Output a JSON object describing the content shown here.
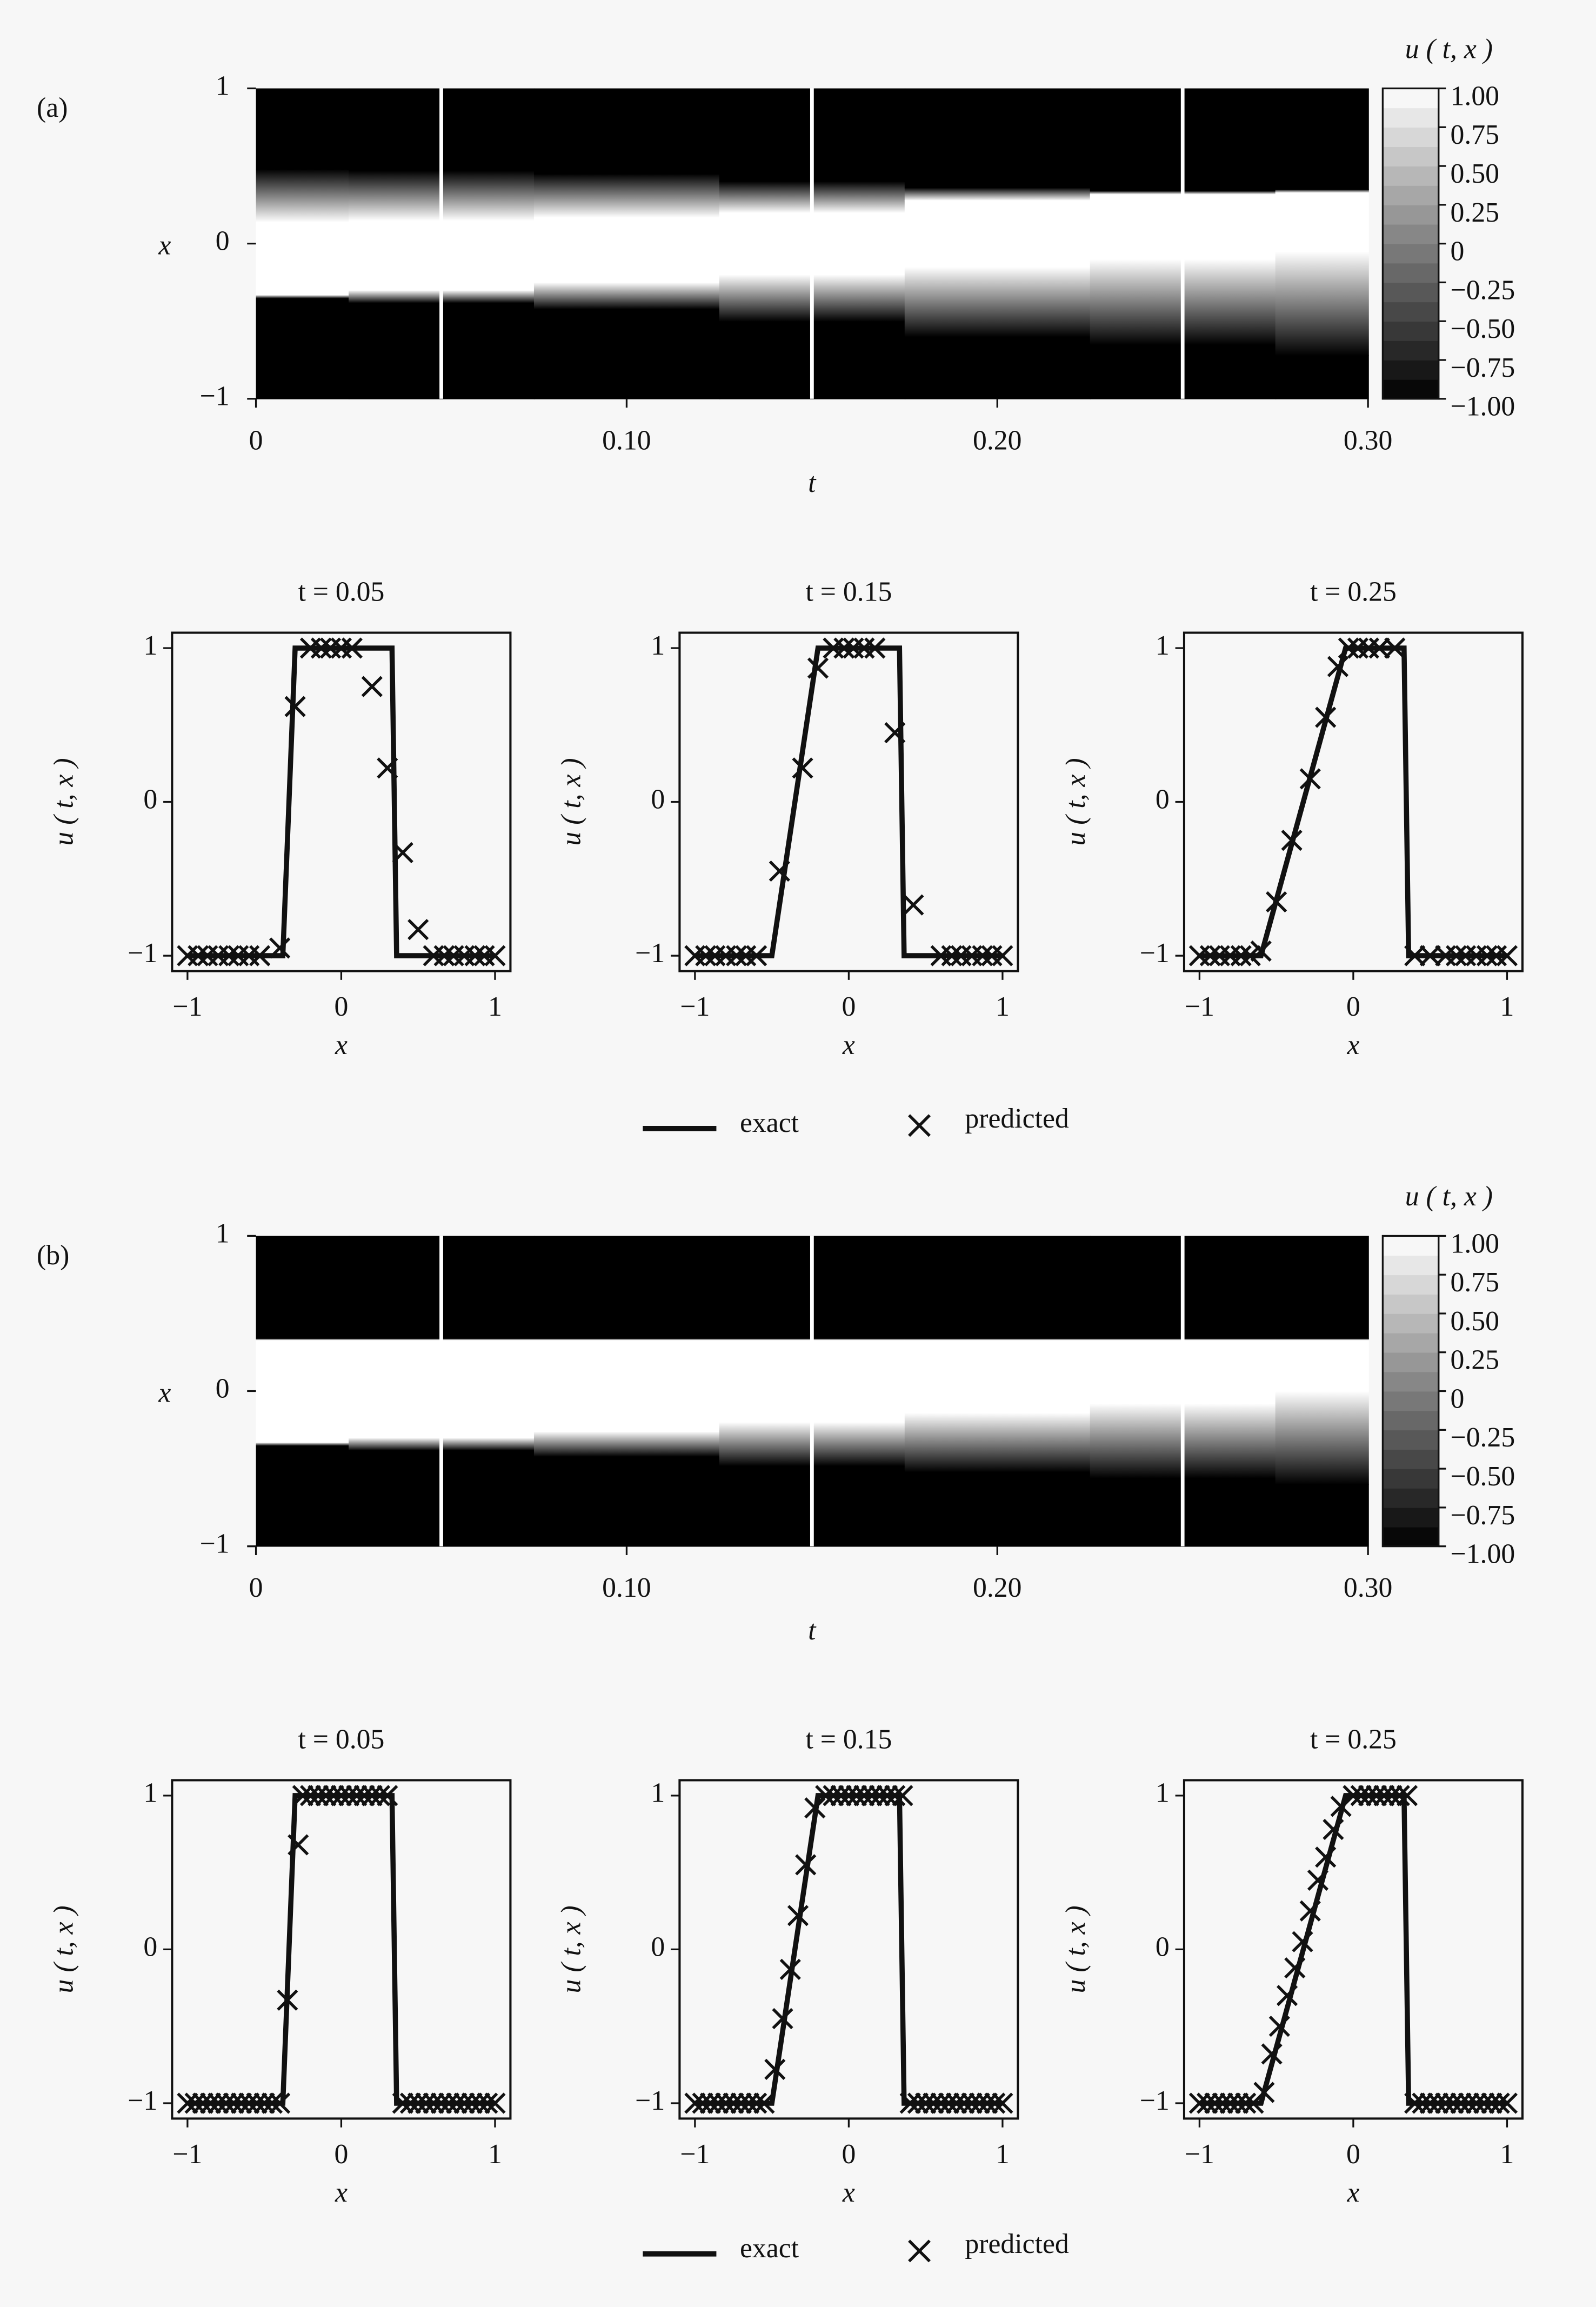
{
  "chart_data": [
    {
      "type": "heatmap",
      "panel_label": "(a)",
      "xlabel": "t",
      "ylabel": "x",
      "colorbar_label": "u ( t, x )",
      "t": [
        0,
        0.05,
        0.1,
        0.15,
        0.2,
        0.25,
        0.3
      ],
      "fronts": {
        "rise_start": [
          -0.35,
          -0.38,
          -0.42,
          -0.5,
          -0.6,
          -0.65,
          -0.72
        ],
        "rise_end": [
          -0.33,
          -0.3,
          -0.25,
          -0.2,
          -0.15,
          -0.1,
          -0.05
        ],
        "fall_start": [
          0.14,
          0.15,
          0.17,
          0.2,
          0.28,
          0.32,
          0.33
        ],
        "fall_end": [
          0.48,
          0.47,
          0.45,
          0.4,
          0.36,
          0.34,
          0.35
        ]
      },
      "snapshots": [
        0.05,
        0.15,
        0.25
      ],
      "xlim": [
        0,
        0.3
      ],
      "xticks": [
        0,
        {
          "value": 0.1,
          "label": "0.10"
        },
        {
          "value": 0.2,
          "label": "0.20"
        },
        {
          "value": 0.3,
          "label": "0.30"
        }
      ],
      "ylim": [
        -1,
        1
      ],
      "yticks": [
        {
          "value": -1,
          "label": "−1"
        },
        0,
        1
      ],
      "clim": [
        -1,
        1
      ],
      "cticks": [
        {
          "value": 1,
          "label": "1.00"
        },
        {
          "value": 0.75,
          "label": "0.75"
        },
        {
          "value": 0.5,
          "label": "0.50"
        },
        {
          "value": 0.25,
          "label": "0.25"
        },
        0,
        {
          "value": -0.25,
          "label": "−0.25"
        },
        {
          "value": -0.5,
          "label": "−0.50"
        },
        {
          "value": -0.75,
          "label": "−0.75"
        },
        {
          "value": -1,
          "label": "−1.00"
        }
      ]
    },
    {
      "type": "line",
      "title": "t = 0.05",
      "xlabel": "x",
      "ylabel": "u ( t, x )",
      "xlim": [
        -1.1,
        1.1
      ],
      "xticks": [
        {
          "value": -1,
          "label": "−1"
        },
        0,
        1
      ],
      "ylim": [
        -1.1,
        1.1
      ],
      "yticks": [
        {
          "value": -1,
          "label": "−1"
        },
        0,
        1
      ],
      "series": [
        {
          "name": "exact",
          "color": "#111111",
          "x": [
            -1,
            -0.38,
            -0.3,
            0.33,
            0.36,
            1
          ],
          "values": [
            -1,
            -1,
            1,
            1,
            -1,
            -1
          ]
        },
        {
          "name": "predicted",
          "color": "#111111",
          "marker": "x",
          "x": [
            -1,
            -0.93,
            -0.87,
            -0.8,
            -0.73,
            -0.67,
            -0.6,
            -0.53,
            -0.4,
            -0.3,
            -0.2,
            -0.13,
            -0.07,
            0,
            0.07,
            0.2,
            0.3,
            0.4,
            0.5,
            0.6,
            0.67,
            0.73,
            0.8,
            0.87,
            0.93,
            1
          ],
          "values": [
            -1,
            -1,
            -1,
            -1,
            -1,
            -1,
            -1,
            -1,
            -0.95,
            0.62,
            1,
            1,
            1,
            1,
            1,
            0.75,
            0.22,
            -0.33,
            -0.83,
            -1,
            -1,
            -1,
            -1,
            -1,
            -1,
            -1
          ]
        }
      ]
    },
    {
      "type": "line",
      "title": "t = 0.15",
      "xlabel": "x",
      "ylabel": "u ( t, x )",
      "legend": true,
      "xlim": [
        -1.1,
        1.1
      ],
      "xticks": [
        {
          "value": -1,
          "label": "−1"
        },
        0,
        1
      ],
      "ylim": [
        -1.1,
        1.1
      ],
      "yticks": [
        {
          "value": -1,
          "label": "−1"
        },
        0,
        1
      ],
      "series": [
        {
          "name": "exact",
          "color": "#111111",
          "x": [
            -1,
            -0.5,
            -0.2,
            0.33,
            0.36,
            1
          ],
          "values": [
            -1,
            -1,
            1,
            1,
            -1,
            -1
          ]
        },
        {
          "name": "predicted",
          "color": "#111111",
          "marker": "x",
          "x": [
            -1,
            -0.93,
            -0.87,
            -0.8,
            -0.73,
            -0.67,
            -0.6,
            -0.45,
            -0.3,
            -0.2,
            -0.1,
            -0.03,
            0.03,
            0.1,
            0.17,
            0.3,
            0.42,
            0.6,
            0.67,
            0.73,
            0.8,
            0.87,
            0.93,
            1
          ],
          "values": [
            -1,
            -1,
            -1,
            -1,
            -1,
            -1,
            -1,
            -0.45,
            0.22,
            0.87,
            1,
            1,
            1,
            1,
            1,
            0.45,
            -0.67,
            -1,
            -1,
            -1,
            -1,
            -1,
            -1,
            -1
          ]
        }
      ]
    },
    {
      "type": "line",
      "title": "t = 0.25",
      "xlabel": "x",
      "ylabel": "u ( t, x )",
      "xlim": [
        -1.1,
        1.1
      ],
      "xticks": [
        {
          "value": -1,
          "label": "−1"
        },
        0,
        1
      ],
      "ylim": [
        -1.1,
        1.1
      ],
      "yticks": [
        {
          "value": -1,
          "label": "−1"
        },
        0,
        1
      ],
      "series": [
        {
          "name": "exact",
          "color": "#111111",
          "x": [
            -1,
            -0.6,
            -0.05,
            0.33,
            0.36,
            1
          ],
          "values": [
            -1,
            -1,
            1,
            1,
            -1,
            -1
          ]
        },
        {
          "name": "predicted",
          "color": "#111111",
          "marker": "x",
          "x": [
            -1,
            -0.93,
            -0.87,
            -0.8,
            -0.73,
            -0.67,
            -0.6,
            -0.5,
            -0.4,
            -0.28,
            -0.18,
            -0.1,
            -0.03,
            0.03,
            0.1,
            0.17,
            0.27,
            0.4,
            0.5,
            0.6,
            0.67,
            0.73,
            0.8,
            0.87,
            0.93,
            1
          ],
          "values": [
            -1,
            -1,
            -1,
            -1,
            -1,
            -1,
            -0.97,
            -0.65,
            -0.25,
            0.15,
            0.55,
            0.88,
            1,
            1,
            1,
            1,
            1,
            -1,
            -1,
            -1,
            -1,
            -1,
            -1,
            -1,
            -1,
            -1
          ]
        }
      ]
    },
    {
      "type": "heatmap",
      "panel_label": "(b)",
      "xlabel": "t",
      "ylabel": "x",
      "colorbar_label": "u ( t, x )",
      "t": [
        0,
        0.05,
        0.1,
        0.15,
        0.2,
        0.25,
        0.3
      ],
      "fronts": {
        "rise_start": [
          -0.35,
          -0.38,
          -0.42,
          -0.48,
          -0.52,
          -0.56,
          -0.6
        ],
        "rise_end": [
          -0.33,
          -0.3,
          -0.26,
          -0.2,
          -0.14,
          -0.08,
          0
        ],
        "fall_start": [
          0.33,
          0.33,
          0.33,
          0.33,
          0.33,
          0.33,
          0.33
        ],
        "fall_end": [
          0.34,
          0.34,
          0.34,
          0.34,
          0.34,
          0.34,
          0.34
        ]
      },
      "snapshots": [
        0.05,
        0.15,
        0.25
      ],
      "xlim": [
        0,
        0.3
      ],
      "xticks": [
        0,
        {
          "value": 0.1,
          "label": "0.10"
        },
        {
          "value": 0.2,
          "label": "0.20"
        },
        {
          "value": 0.3,
          "label": "0.30"
        }
      ],
      "ylim": [
        -1,
        1
      ],
      "yticks": [
        {
          "value": -1,
          "label": "−1"
        },
        0,
        1
      ],
      "clim": [
        -1,
        1
      ],
      "cticks": [
        {
          "value": 1,
          "label": "1.00"
        },
        {
          "value": 0.75,
          "label": "0.75"
        },
        {
          "value": 0.5,
          "label": "0.50"
        },
        {
          "value": 0.25,
          "label": "0.25"
        },
        0,
        {
          "value": -0.25,
          "label": "−0.25"
        },
        {
          "value": -0.5,
          "label": "−0.50"
        },
        {
          "value": -0.75,
          "label": "−0.75"
        },
        {
          "value": -1,
          "label": "−1.00"
        }
      ]
    },
    {
      "type": "line",
      "title": "t = 0.05",
      "xlabel": "x",
      "ylabel": "u ( t, x )",
      "xlim": [
        -1.1,
        1.1
      ],
      "xticks": [
        {
          "value": -1,
          "label": "−1"
        },
        0,
        1
      ],
      "ylim": [
        -1.1,
        1.1
      ],
      "yticks": [
        {
          "value": -1,
          "label": "−1"
        },
        0,
        1
      ],
      "series": [
        {
          "name": "exact",
          "color": "#111111",
          "x": [
            -1,
            -0.38,
            -0.3,
            0.33,
            0.36,
            1
          ],
          "values": [
            -1,
            -1,
            1,
            1,
            -1,
            -1
          ]
        },
        {
          "name": "predicted",
          "color": "#111111",
          "marker": "x",
          "x": [
            -1,
            -0.95,
            -0.9,
            -0.85,
            -0.8,
            -0.75,
            -0.7,
            -0.65,
            -0.6,
            -0.55,
            -0.5,
            -0.45,
            -0.4,
            -0.35,
            -0.28,
            -0.25,
            -0.2,
            -0.15,
            -0.1,
            -0.05,
            0,
            0.05,
            0.1,
            0.15,
            0.2,
            0.25,
            0.3,
            0.4,
            0.45,
            0.5,
            0.55,
            0.6,
            0.65,
            0.7,
            0.75,
            0.8,
            0.85,
            0.9,
            0.95,
            1
          ],
          "values": [
            -1,
            -1,
            -1,
            -1,
            -1,
            -1,
            -1,
            -1,
            -1,
            -1,
            -1,
            -1,
            -1,
            -0.33,
            0.68,
            1,
            1,
            1,
            1,
            1,
            1,
            1,
            1,
            1,
            1,
            1,
            1,
            -1,
            -1,
            -1,
            -1,
            -1,
            -1,
            -1,
            -1,
            -1,
            -1,
            -1,
            -1,
            -1
          ]
        }
      ]
    },
    {
      "type": "line",
      "title": "t = 0.15",
      "xlabel": "x",
      "ylabel": "u ( t, x )",
      "legend": true,
      "xlim": [
        -1.1,
        1.1
      ],
      "xticks": [
        {
          "value": -1,
          "label": "−1"
        },
        0,
        1
      ],
      "ylim": [
        -1.1,
        1.1
      ],
      "yticks": [
        {
          "value": -1,
          "label": "−1"
        },
        0,
        1
      ],
      "series": [
        {
          "name": "exact",
          "color": "#111111",
          "x": [
            -1,
            -0.5,
            -0.2,
            0.33,
            0.36,
            1
          ],
          "values": [
            -1,
            -1,
            1,
            1,
            -1,
            -1
          ]
        },
        {
          "name": "predicted",
          "color": "#111111",
          "marker": "x",
          "x": [
            -1,
            -0.95,
            -0.9,
            -0.85,
            -0.8,
            -0.75,
            -0.7,
            -0.65,
            -0.6,
            -0.55,
            -0.48,
            -0.43,
            -0.38,
            -0.33,
            -0.28,
            -0.22,
            -0.15,
            -0.1,
            -0.05,
            0,
            0.05,
            0.1,
            0.15,
            0.2,
            0.25,
            0.3,
            0.35,
            0.4,
            0.45,
            0.5,
            0.55,
            0.6,
            0.65,
            0.7,
            0.75,
            0.8,
            0.85,
            0.9,
            0.95,
            1
          ],
          "values": [
            -1,
            -1,
            -1,
            -1,
            -1,
            -1,
            -1,
            -1,
            -1,
            -1,
            -0.78,
            -0.45,
            -0.13,
            0.22,
            0.55,
            0.92,
            1,
            1,
            1,
            1,
            1,
            1,
            1,
            1,
            1,
            1,
            1,
            -1,
            -1,
            -1,
            -1,
            -1,
            -1,
            -1,
            -1,
            -1,
            -1,
            -1,
            -1,
            -1
          ]
        }
      ]
    },
    {
      "type": "line",
      "title": "t = 0.25",
      "xlabel": "x",
      "ylabel": "u ( t, x )",
      "xlim": [
        -1.1,
        1.1
      ],
      "xticks": [
        {
          "value": -1,
          "label": "−1"
        },
        0,
        1
      ],
      "ylim": [
        -1.1,
        1.1
      ],
      "yticks": [
        {
          "value": -1,
          "label": "−1"
        },
        0,
        1
      ],
      "series": [
        {
          "name": "exact",
          "color": "#111111",
          "x": [
            -1,
            -0.6,
            -0.05,
            0.33,
            0.36,
            1
          ],
          "values": [
            -1,
            -1,
            1,
            1,
            -1,
            -1
          ]
        },
        {
          "name": "predicted",
          "color": "#111111",
          "marker": "x",
          "x": [
            -1,
            -0.95,
            -0.9,
            -0.85,
            -0.8,
            -0.75,
            -0.7,
            -0.65,
            -0.58,
            -0.53,
            -0.48,
            -0.43,
            -0.38,
            -0.33,
            -0.28,
            -0.23,
            -0.18,
            -0.13,
            -0.08,
            0,
            0.05,
            0.1,
            0.15,
            0.2,
            0.25,
            0.3,
            0.35,
            0.4,
            0.45,
            0.5,
            0.55,
            0.6,
            0.65,
            0.7,
            0.75,
            0.8,
            0.85,
            0.9,
            0.95,
            1
          ],
          "values": [
            -1,
            -1,
            -1,
            -1,
            -1,
            -1,
            -1,
            -1,
            -0.93,
            -0.68,
            -0.5,
            -0.3,
            -0.12,
            0.05,
            0.25,
            0.45,
            0.6,
            0.78,
            0.93,
            1,
            1,
            1,
            1,
            1,
            1,
            1,
            1,
            -1,
            -1,
            -1,
            -1,
            -1,
            -1,
            -1,
            -1,
            -1,
            -1,
            -1,
            -1,
            -1
          ]
        }
      ]
    }
  ]
}
